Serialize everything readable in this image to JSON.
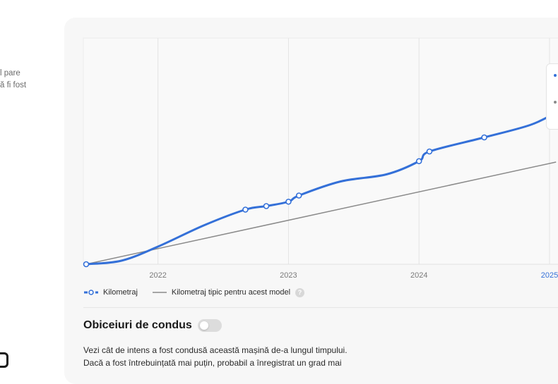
{
  "left_panel": {
    "text_line1": "l pare",
    "text_line2": "ă fi fost",
    "icon": "app-logo-icon"
  },
  "chart_data": {
    "type": "line",
    "x_ticks": [
      "2022",
      "2023",
      "2024",
      "2025"
    ],
    "x_range": [
      2021.4,
      2025.05
    ],
    "y_range": [
      0,
      1
    ],
    "series": [
      {
        "name": "Kilometraj",
        "color": "#3470d8",
        "style": "solid-with-markers",
        "points": [
          [
            2021.45,
            0.0
          ],
          [
            2021.72,
            0.02
          ],
          [
            2022.0,
            0.1
          ],
          [
            2022.35,
            0.22
          ],
          [
            2022.67,
            0.31
          ],
          [
            2022.83,
            0.33
          ],
          [
            2023.0,
            0.355
          ],
          [
            2023.08,
            0.39
          ],
          [
            2023.4,
            0.47
          ],
          [
            2023.75,
            0.51
          ],
          [
            2024.0,
            0.585
          ],
          [
            2024.08,
            0.64
          ],
          [
            2024.5,
            0.72
          ],
          [
            2024.85,
            0.79
          ],
          [
            2025.05,
            0.86
          ]
        ],
        "markers": [
          [
            2021.45,
            0.0
          ],
          [
            2022.67,
            0.31
          ],
          [
            2022.83,
            0.33
          ],
          [
            2023.0,
            0.355
          ],
          [
            2023.08,
            0.39
          ],
          [
            2024.0,
            0.585
          ],
          [
            2024.08,
            0.64
          ],
          [
            2024.5,
            0.72
          ]
        ]
      },
      {
        "name": "Kilometraj tipic pentru acest model",
        "color": "#8a8a8a",
        "style": "solid",
        "points": [
          [
            2021.45,
            0.0
          ],
          [
            2025.05,
            0.58
          ]
        ]
      }
    ],
    "highlight_tick": "2025",
    "highlight_color": "#3470d8",
    "grid": "vertical",
    "legend_position": "bottom-left"
  },
  "legend": {
    "item1": "Kilometraj",
    "item2": "Kilometraj tipic pentru acest model",
    "help": "?"
  },
  "section": {
    "title": "Obiceiuri de condus",
    "toggle_on": false
  },
  "description": {
    "line1": "Vezi cât de intens a fost condusă această mașină de-a lungul timpului.",
    "line2": "Dacă a fost întrebuințată mai puțin, probabil a înregistrat un grad mai"
  }
}
